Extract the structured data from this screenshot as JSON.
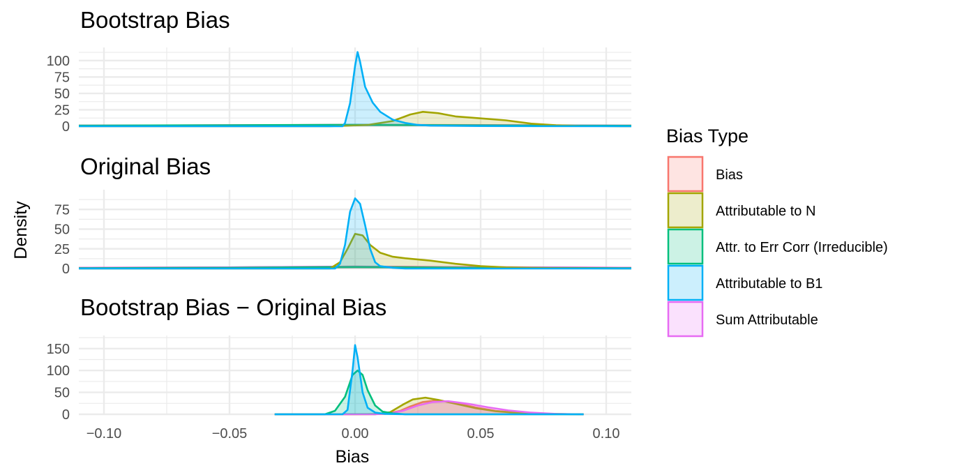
{
  "chart_data": {
    "type": "area",
    "xlabel": "Bias",
    "ylabel": "Density",
    "xlim": [
      -0.11,
      0.11
    ],
    "x_ticks": [
      -0.1,
      -0.05,
      0.0,
      0.05,
      0.1
    ],
    "x_tick_labels": [
      "−0.10",
      "−0.05",
      "0.00",
      "0.05",
      "0.10"
    ],
    "grid": true,
    "legend": {
      "title": "Bias Type",
      "position": "right",
      "entries": [
        {
          "label": "Bias",
          "color": "#F8766D"
        },
        {
          "label": "Attributable to N",
          "color": "#A3A500"
        },
        {
          "label": "Attr. to Err Corr (Irreducible)",
          "color": "#00BF7D"
        },
        {
          "label": "Attributable to B1",
          "color": "#00B0F6"
        },
        {
          "label": "Sum Attributable",
          "color": "#E76BF3"
        }
      ]
    },
    "panels": [
      {
        "title": "Bootstrap Bias",
        "ylim": [
          0,
          120
        ],
        "y_ticks": [
          0,
          25,
          50,
          75,
          100
        ],
        "y_tick_labels": [
          "0",
          "25",
          "50",
          "75",
          "100"
        ],
        "series": [
          {
            "name": "Bias",
            "color": "#F8766D",
            "points": [
              [
                -0.11,
                1
              ],
              [
                -0.05,
                1.5
              ],
              [
                0,
                2
              ],
              [
                0.05,
                1.6
              ],
              [
                0.11,
                1
              ]
            ]
          },
          {
            "name": "Sum Attributable",
            "color": "#E76BF3",
            "points": [
              [
                -0.11,
                1
              ],
              [
                -0.05,
                1.5
              ],
              [
                0,
                2.2
              ],
              [
                0.05,
                1.8
              ],
              [
                0.11,
                1
              ]
            ]
          },
          {
            "name": "Attr. to Err Corr (Irreducible)",
            "color": "#00BF7D",
            "points": [
              [
                -0.11,
                1
              ],
              [
                -0.05,
                1.6
              ],
              [
                0,
                2.2
              ],
              [
                0.05,
                1.4
              ],
              [
                0.11,
                0.8
              ]
            ]
          },
          {
            "name": "Attributable to N",
            "color": "#A3A500",
            "points": [
              [
                -0.11,
                0
              ],
              [
                -0.01,
                0
              ],
              [
                0.005,
                2
              ],
              [
                0.015,
                8
              ],
              [
                0.022,
                18
              ],
              [
                0.027,
                22
              ],
              [
                0.033,
                20
              ],
              [
                0.04,
                15
              ],
              [
                0.05,
                12
              ],
              [
                0.06,
                9
              ],
              [
                0.07,
                4
              ],
              [
                0.08,
                1.5
              ],
              [
                0.09,
                0.5
              ],
              [
                0.11,
                0
              ]
            ]
          },
          {
            "name": "Attributable to B1",
            "color": "#00B0F6",
            "points": [
              [
                -0.11,
                0
              ],
              [
                -0.005,
                0
              ],
              [
                -0.004,
                5
              ],
              [
                -0.002,
                35
              ],
              [
                0,
                92
              ],
              [
                0.001,
                113
              ],
              [
                0.002,
                98
              ],
              [
                0.004,
                60
              ],
              [
                0.007,
                36
              ],
              [
                0.01,
                22
              ],
              [
                0.015,
                10
              ],
              [
                0.02,
                5
              ],
              [
                0.025,
                2
              ],
              [
                0.03,
                1
              ],
              [
                0.05,
                0.3
              ],
              [
                0.11,
                0
              ]
            ]
          }
        ]
      },
      {
        "title": "Original Bias",
        "ylim": [
          0,
          100
        ],
        "y_ticks": [
          0,
          25,
          50,
          75
        ],
        "y_tick_labels": [
          "0",
          "25",
          "50",
          "75"
        ],
        "series": [
          {
            "name": "Bias",
            "color": "#F8766D",
            "points": [
              [
                -0.11,
                1
              ],
              [
                -0.05,
                1.5
              ],
              [
                0,
                2.5
              ],
              [
                0.05,
                1.8
              ],
              [
                0.11,
                1
              ]
            ]
          },
          {
            "name": "Sum Attributable",
            "color": "#E76BF3",
            "points": [
              [
                -0.11,
                1
              ],
              [
                -0.05,
                1.5
              ],
              [
                0,
                2.5
              ],
              [
                0.05,
                1.8
              ],
              [
                0.11,
                1
              ]
            ]
          },
          {
            "name": "Attr. to Err Corr (Irreducible)",
            "color": "#00BF7D",
            "points": [
              [
                -0.11,
                0.5
              ],
              [
                -0.05,
                1
              ],
              [
                0,
                2
              ],
              [
                0.05,
                1
              ],
              [
                0.11,
                0.5
              ]
            ]
          },
          {
            "name": "Attributable to N",
            "color": "#A3A500",
            "points": [
              [
                -0.11,
                0
              ],
              [
                -0.01,
                0
              ],
              [
                -0.006,
                8
              ],
              [
                -0.003,
                25
              ],
              [
                0,
                44
              ],
              [
                0.003,
                42
              ],
              [
                0.006,
                30
              ],
              [
                0.01,
                20
              ],
              [
                0.015,
                15
              ],
              [
                0.02,
                13
              ],
              [
                0.03,
                10
              ],
              [
                0.04,
                6
              ],
              [
                0.05,
                3
              ],
              [
                0.06,
                1.5
              ],
              [
                0.08,
                0.5
              ],
              [
                0.11,
                0
              ]
            ]
          },
          {
            "name": "Attributable to B1",
            "color": "#00B0F6",
            "points": [
              [
                -0.11,
                0
              ],
              [
                -0.008,
                0
              ],
              [
                -0.006,
                6
              ],
              [
                -0.004,
                30
              ],
              [
                -0.002,
                72
              ],
              [
                0,
                89
              ],
              [
                0.002,
                82
              ],
              [
                0.004,
                55
              ],
              [
                0.006,
                25
              ],
              [
                0.008,
                8
              ],
              [
                0.01,
                3
              ],
              [
                0.015,
                1
              ],
              [
                0.02,
                0
              ],
              [
                0.11,
                0
              ]
            ]
          }
        ]
      },
      {
        "title": "Bootstrap Bias − Original Bias",
        "ylim": [
          0,
          180
        ],
        "y_ticks": [
          0,
          50,
          100,
          150
        ],
        "y_tick_labels": [
          "0",
          "50",
          "100",
          "150"
        ],
        "series": [
          {
            "name": "Bias",
            "color": "#F8766D",
            "points": [
              [
                -0.032,
                0
              ],
              [
                0,
                0
              ],
              [
                0.012,
                1
              ],
              [
                0.018,
                8
              ],
              [
                0.022,
                18
              ],
              [
                0.027,
                28
              ],
              [
                0.033,
                32
              ],
              [
                0.04,
                26
              ],
              [
                0.048,
                16
              ],
              [
                0.056,
                8
              ],
              [
                0.065,
                3
              ],
              [
                0.075,
                1
              ],
              [
                0.091,
                0
              ]
            ]
          },
          {
            "name": "Attributable to N",
            "color": "#A3A500",
            "points": [
              [
                -0.032,
                0
              ],
              [
                0.008,
                0
              ],
              [
                0.014,
                5
              ],
              [
                0.019,
                22
              ],
              [
                0.023,
                34
              ],
              [
                0.028,
                38
              ],
              [
                0.033,
                33
              ],
              [
                0.04,
                24
              ],
              [
                0.048,
                14
              ],
              [
                0.056,
                7
              ],
              [
                0.065,
                3
              ],
              [
                0.075,
                1
              ],
              [
                0.091,
                0
              ]
            ]
          },
          {
            "name": "Sum Attributable",
            "color": "#E76BF3",
            "points": [
              [
                -0.032,
                0
              ],
              [
                0.008,
                0
              ],
              [
                0.014,
                2
              ],
              [
                0.019,
                8
              ],
              [
                0.025,
                20
              ],
              [
                0.031,
                28
              ],
              [
                0.037,
                30
              ],
              [
                0.045,
                24
              ],
              [
                0.053,
                16
              ],
              [
                0.061,
                9
              ],
              [
                0.07,
                4
              ],
              [
                0.08,
                1
              ],
              [
                0.091,
                0
              ]
            ]
          },
          {
            "name": "Attr. to Err Corr (Irreducible)",
            "color": "#00BF7D",
            "points": [
              [
                -0.032,
                0
              ],
              [
                -0.012,
                0
              ],
              [
                -0.008,
                8
              ],
              [
                -0.004,
                40
              ],
              [
                -0.001,
                90
              ],
              [
                0.001,
                100
              ],
              [
                0.003,
                90
              ],
              [
                0.005,
                55
              ],
              [
                0.008,
                20
              ],
              [
                0.011,
                6
              ],
              [
                0.015,
                2
              ],
              [
                0.02,
                0
              ],
              [
                0.091,
                0
              ]
            ]
          },
          {
            "name": "Attributable to B1",
            "color": "#00B0F6",
            "points": [
              [
                -0.032,
                0
              ],
              [
                -0.005,
                0
              ],
              [
                -0.003,
                10
              ],
              [
                -0.001,
                100
              ],
              [
                0,
                158
              ],
              [
                0.001,
                130
              ],
              [
                0.003,
                50
              ],
              [
                0.005,
                15
              ],
              [
                0.008,
                4
              ],
              [
                0.012,
                1
              ],
              [
                0.02,
                0
              ],
              [
                0.091,
                0
              ]
            ]
          }
        ]
      }
    ]
  }
}
